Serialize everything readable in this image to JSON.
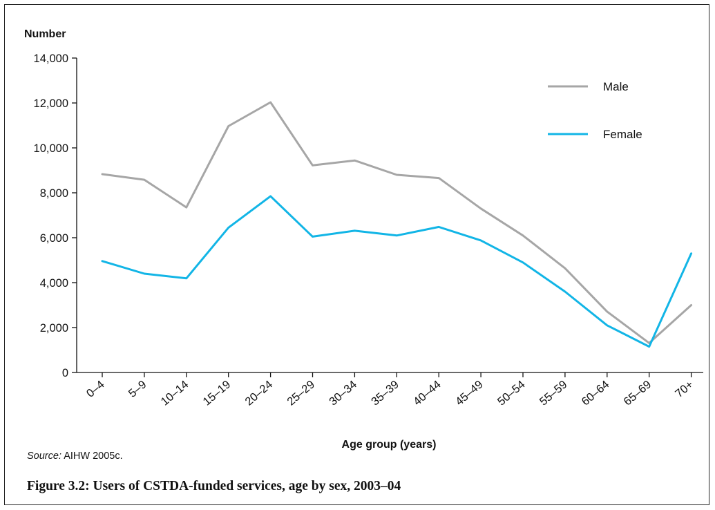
{
  "figure": {
    "caption": "Figure 3.2: Users of CSTDA-funded services, age by sex, 2003–04",
    "source_label": "Source:",
    "source_text": "AIHW 2005c."
  },
  "chart_data": {
    "type": "line",
    "title": "",
    "xlabel": "Age group (years)",
    "ylabel": "Number",
    "ylim": [
      0,
      14000
    ],
    "yticks": [
      0,
      2000,
      4000,
      6000,
      8000,
      10000,
      12000,
      14000
    ],
    "ytick_labels": [
      "0",
      "2,000",
      "4,000",
      "6,000",
      "8,000",
      "10,000",
      "12,000",
      "14,000"
    ],
    "categories": [
      "0–4",
      "5–9",
      "10–14",
      "15–19",
      "20–24",
      "25–29",
      "30–34",
      "35–39",
      "40–44",
      "45–49",
      "50–54",
      "55–59",
      "60–64",
      "65–69",
      "70+"
    ],
    "series": [
      {
        "name": "Male",
        "color": "#a6a6a6",
        "values": [
          8830,
          8580,
          7350,
          10970,
          12030,
          9220,
          9440,
          8800,
          8660,
          7300,
          6100,
          4640,
          2710,
          1310,
          3000
        ]
      },
      {
        "name": "Female",
        "color": "#12b5e6",
        "values": [
          4960,
          4400,
          4190,
          6450,
          7850,
          6050,
          6310,
          6100,
          6480,
          5880,
          4900,
          3600,
          2100,
          1150,
          5300
        ]
      }
    ],
    "grid": false,
    "legend_position": "top-right"
  }
}
